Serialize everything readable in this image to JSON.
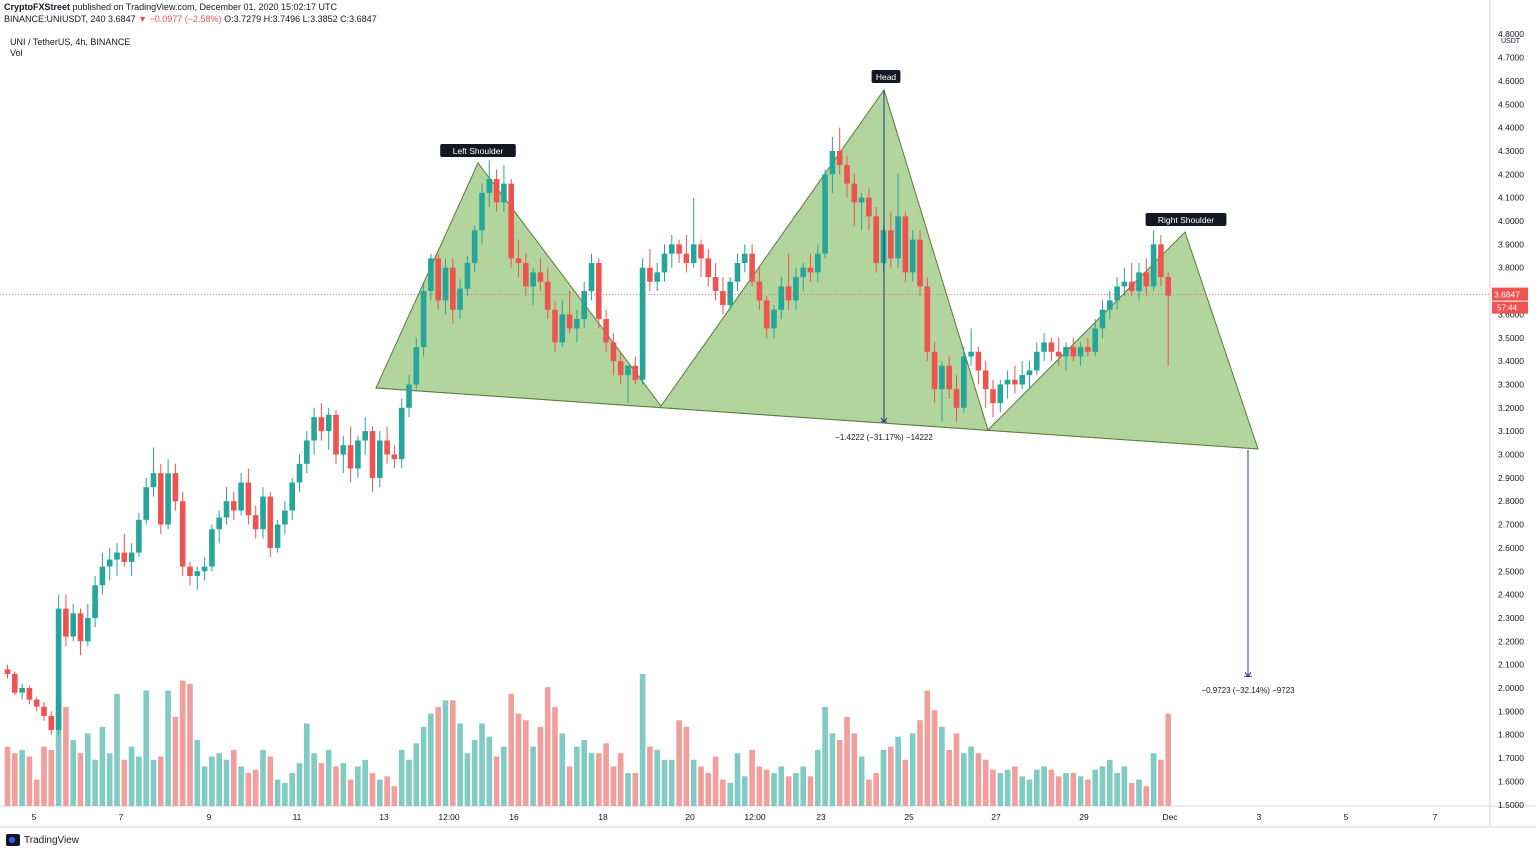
{
  "header": {
    "publisher": "CryptoFXStreet",
    "published_text": "published on TradingView.com, December 01, 2020 15:02:17 UTC",
    "symbol": "BINANCE:UNIUSDT, 240",
    "last": "3.6847",
    "change": "▼ −0.0977 (−2.58%)",
    "ohlc": "O:3.7279 H:3.7496 L:3.3852 C:3.6847"
  },
  "legend": {
    "title": "UNI / TetherUS, 4h, BINANCE",
    "volume_label": "Vol"
  },
  "brand": {
    "name": "TradingView"
  },
  "colors": {
    "up": "#26a69a",
    "down": "#ef5350",
    "vol_up": "#80cbc4",
    "vol_down": "#f19e9c",
    "pattern_fill": "#a5cd8c",
    "measure_line": "#1e3c8c",
    "price_line": "#ef5350"
  },
  "chart_data": {
    "type": "candlestick",
    "y_axis": {
      "currency": "USDT",
      "ylim": [
        1.5,
        4.8
      ],
      "ticks": [
        "1.5000",
        "1.6000",
        "1.7000",
        "1.8000",
        "1.9000",
        "2.0000",
        "2.1000",
        "2.2000",
        "2.3000",
        "2.4000",
        "2.5000",
        "2.6000",
        "2.7000",
        "2.8000",
        "2.9000",
        "3.0000",
        "3.1000",
        "3.2000",
        "3.3000",
        "3.4000",
        "3.5000",
        "3.6000",
        "3.7000",
        "3.8000",
        "3.9000",
        "4.0000",
        "4.1000",
        "4.2000",
        "4.3000",
        "4.4000",
        "4.5000",
        "4.6000",
        "4.7000",
        "4.8000"
      ]
    },
    "x_axis": {
      "ticks": [
        "5",
        "7",
        "9",
        "11",
        "13",
        "12:00",
        "16",
        "18",
        "20",
        "12:00",
        "23",
        "25",
        "27",
        "29",
        "Dec",
        "3",
        "5",
        "7"
      ]
    },
    "last_price": {
      "value": 3.6847,
      "label": "3.6847",
      "countdown": "57:44"
    },
    "pattern": {
      "name": "head-and-shoulders",
      "labels": [
        "Left Shoulder",
        "Head",
        "Right Shoulder"
      ],
      "points": [
        {
          "time": "Nov 13 08:00",
          "price": 3.28
        },
        {
          "time": "Nov 15 00:00",
          "price": 4.25
        },
        {
          "time": "Nov 19 04:00",
          "price": 3.21
        },
        {
          "time": "Nov 24 04:00",
          "price": 4.56
        },
        {
          "time": "Nov 27 00:00",
          "price": 3.11
        },
        {
          "time": "Nov 30 20:00",
          "price": 3.95
        },
        {
          "time": "Dec 02 12:00",
          "price": 3.02
        }
      ]
    },
    "measurements": [
      {
        "from": 4.56,
        "to": 3.14,
        "label": "−1.4222 (−31.17%) −14222"
      },
      {
        "from": 3.02,
        "to": 2.05,
        "label": "−0.9723 (−32.14%) −9723"
      }
    ],
    "candles": [
      [
        2.08,
        2.1,
        2.04,
        2.06,
        0.18
      ],
      [
        2.06,
        2.07,
        1.97,
        1.98,
        0.16
      ],
      [
        1.98,
        2.02,
        1.95,
        2.0,
        0.17
      ],
      [
        2.0,
        2.01,
        1.93,
        1.95,
        0.15
      ],
      [
        1.95,
        1.96,
        1.9,
        1.92,
        0.08
      ],
      [
        1.92,
        1.94,
        1.86,
        1.88,
        0.18
      ],
      [
        1.88,
        1.9,
        1.8,
        1.82,
        0.17
      ],
      [
        1.82,
        2.4,
        1.8,
        2.34,
        0.32
      ],
      [
        2.34,
        2.4,
        2.18,
        2.22,
        0.3
      ],
      [
        2.22,
        2.36,
        2.2,
        2.32,
        0.2
      ],
      [
        2.32,
        2.34,
        2.14,
        2.2,
        0.16
      ],
      [
        2.2,
        2.36,
        2.18,
        2.3,
        0.22
      ],
      [
        2.3,
        2.48,
        2.26,
        2.44,
        0.14
      ],
      [
        2.44,
        2.58,
        2.4,
        2.52,
        0.24
      ],
      [
        2.52,
        2.6,
        2.46,
        2.55,
        0.16
      ],
      [
        2.55,
        2.62,
        2.48,
        2.58,
        0.34
      ],
      [
        2.58,
        2.66,
        2.52,
        2.54,
        0.14
      ],
      [
        2.54,
        2.62,
        2.48,
        2.58,
        0.18
      ],
      [
        2.58,
        2.75,
        2.56,
        2.72,
        0.15
      ],
      [
        2.72,
        2.9,
        2.7,
        2.86,
        0.35
      ],
      [
        2.86,
        3.03,
        2.82,
        2.92,
        0.14
      ],
      [
        2.92,
        2.96,
        2.66,
        2.7,
        0.15
      ],
      [
        2.7,
        2.98,
        2.68,
        2.92,
        0.35
      ],
      [
        2.92,
        2.96,
        2.76,
        2.8,
        0.27
      ],
      [
        2.8,
        2.84,
        2.48,
        2.52,
        0.38
      ],
      [
        2.52,
        2.54,
        2.44,
        2.48,
        0.37
      ],
      [
        2.48,
        2.52,
        2.42,
        2.5,
        0.2
      ],
      [
        2.5,
        2.56,
        2.46,
        2.52,
        0.12
      ],
      [
        2.52,
        2.7,
        2.5,
        2.68,
        0.15
      ],
      [
        2.68,
        2.76,
        2.62,
        2.73,
        0.16
      ],
      [
        2.73,
        2.86,
        2.7,
        2.8,
        0.14
      ],
      [
        2.8,
        2.84,
        2.72,
        2.76,
        0.17
      ],
      [
        2.76,
        2.92,
        2.74,
        2.88,
        0.12
      ],
      [
        2.88,
        2.94,
        2.7,
        2.74,
        0.1
      ],
      [
        2.74,
        2.78,
        2.64,
        2.68,
        0.11
      ],
      [
        2.68,
        2.86,
        2.64,
        2.82,
        0.17
      ],
      [
        2.82,
        2.84,
        2.56,
        2.6,
        0.15
      ],
      [
        2.6,
        2.72,
        2.58,
        2.7,
        0.08
      ],
      [
        2.7,
        2.8,
        2.66,
        2.76,
        0.07
      ],
      [
        2.76,
        2.9,
        2.72,
        2.88,
        0.1
      ],
      [
        2.88,
        3.0,
        2.84,
        2.96,
        0.13
      ],
      [
        2.96,
        3.1,
        2.92,
        3.06,
        0.25
      ],
      [
        3.06,
        3.2,
        3.0,
        3.16,
        0.16
      ],
      [
        3.16,
        3.22,
        3.06,
        3.1,
        0.13
      ],
      [
        3.1,
        3.2,
        3.02,
        3.17,
        0.17
      ],
      [
        3.17,
        3.19,
        2.96,
        3.0,
        0.12
      ],
      [
        3.0,
        3.08,
        2.92,
        3.04,
        0.13
      ],
      [
        3.04,
        3.12,
        2.88,
        2.94,
        0.08
      ],
      [
        2.94,
        3.08,
        2.9,
        3.06,
        0.12
      ],
      [
        3.06,
        3.16,
        3.0,
        3.1,
        0.14
      ],
      [
        3.1,
        3.12,
        2.84,
        2.9,
        0.1
      ],
      [
        2.9,
        3.1,
        2.86,
        3.06,
        0.08
      ],
      [
        3.06,
        3.12,
        2.96,
        3.0,
        0.09
      ],
      [
        3.0,
        3.04,
        2.94,
        2.98,
        0.06
      ],
      [
        2.98,
        3.24,
        2.94,
        3.2,
        0.17
      ],
      [
        3.2,
        3.34,
        3.16,
        3.3,
        0.14
      ],
      [
        3.3,
        3.5,
        3.28,
        3.46,
        0.19
      ],
      [
        3.46,
        3.74,
        3.42,
        3.7,
        0.24
      ],
      [
        3.7,
        3.86,
        3.66,
        3.84,
        0.28
      ],
      [
        3.84,
        3.86,
        3.62,
        3.66,
        0.3
      ],
      [
        3.66,
        3.84,
        3.6,
        3.8,
        0.32
      ],
      [
        3.8,
        3.84,
        3.56,
        3.62,
        0.32
      ],
      [
        3.62,
        3.75,
        3.58,
        3.71,
        0.25
      ],
      [
        3.71,
        3.85,
        3.68,
        3.82,
        0.16
      ],
      [
        3.82,
        3.98,
        3.78,
        3.96,
        0.2
      ],
      [
        3.96,
        4.16,
        3.9,
        4.12,
        0.25
      ],
      [
        4.12,
        4.26,
        4.06,
        4.18,
        0.21
      ],
      [
        4.18,
        4.22,
        4.04,
        4.08,
        0.15
      ],
      [
        4.08,
        4.24,
        4.04,
        4.16,
        0.18
      ],
      [
        4.16,
        4.18,
        3.8,
        3.84,
        0.34
      ],
      [
        3.84,
        3.92,
        3.76,
        3.82,
        0.28
      ],
      [
        3.82,
        3.86,
        3.68,
        3.72,
        0.26
      ],
      [
        3.72,
        3.8,
        3.64,
        3.78,
        0.18
      ],
      [
        3.78,
        3.84,
        3.7,
        3.74,
        0.24
      ],
      [
        3.74,
        3.8,
        3.58,
        3.62,
        0.36
      ],
      [
        3.62,
        3.66,
        3.44,
        3.48,
        0.3
      ],
      [
        3.48,
        3.66,
        3.46,
        3.6,
        0.22
      ],
      [
        3.6,
        3.7,
        3.52,
        3.54,
        0.12
      ],
      [
        3.54,
        3.62,
        3.48,
        3.58,
        0.18
      ],
      [
        3.58,
        3.74,
        3.54,
        3.7,
        0.2
      ],
      [
        3.7,
        3.86,
        3.66,
        3.82,
        0.16
      ],
      [
        3.82,
        3.84,
        3.54,
        3.58,
        0.16
      ],
      [
        3.58,
        3.62,
        3.44,
        3.48,
        0.19
      ],
      [
        3.48,
        3.52,
        3.34,
        3.4,
        0.12
      ],
      [
        3.4,
        3.44,
        3.3,
        3.34,
        0.16
      ],
      [
        3.34,
        3.38,
        3.22,
        3.38,
        0.1
      ],
      [
        3.38,
        3.42,
        3.3,
        3.32,
        0.1
      ],
      [
        3.32,
        3.84,
        3.3,
        3.8,
        0.4
      ],
      [
        3.8,
        3.88,
        3.7,
        3.74,
        0.18
      ],
      [
        3.74,
        3.82,
        3.7,
        3.78,
        0.17
      ],
      [
        3.78,
        3.9,
        3.74,
        3.86,
        0.14
      ],
      [
        3.86,
        3.94,
        3.8,
        3.9,
        0.14
      ],
      [
        3.9,
        3.92,
        3.82,
        3.86,
        0.26
      ],
      [
        3.86,
        3.94,
        3.78,
        3.82,
        0.24
      ],
      [
        3.82,
        4.1,
        3.8,
        3.9,
        0.14
      ],
      [
        3.9,
        3.92,
        3.76,
        3.84,
        0.12
      ],
      [
        3.84,
        3.88,
        3.72,
        3.76,
        0.1
      ],
      [
        3.76,
        3.82,
        3.66,
        3.7,
        0.15
      ],
      [
        3.7,
        3.76,
        3.6,
        3.64,
        0.08
      ],
      [
        3.64,
        3.76,
        3.62,
        3.74,
        0.07
      ],
      [
        3.74,
        3.86,
        3.7,
        3.82,
        0.16
      ],
      [
        3.82,
        3.9,
        3.78,
        3.86,
        0.09
      ],
      [
        3.86,
        3.9,
        3.72,
        3.74,
        0.17
      ],
      [
        3.74,
        3.8,
        3.62,
        3.66,
        0.12
      ],
      [
        3.66,
        3.68,
        3.5,
        3.54,
        0.11
      ],
      [
        3.54,
        3.64,
        3.5,
        3.62,
        0.1
      ],
      [
        3.62,
        3.76,
        3.58,
        3.72,
        0.12
      ],
      [
        3.72,
        3.86,
        3.62,
        3.66,
        0.09
      ],
      [
        3.66,
        3.8,
        3.62,
        3.76,
        0.1
      ],
      [
        3.76,
        3.82,
        3.7,
        3.8,
        0.12
      ],
      [
        3.8,
        3.86,
        3.74,
        3.78,
        0.09
      ],
      [
        3.78,
        3.9,
        3.74,
        3.86,
        0.17
      ],
      [
        3.86,
        4.22,
        3.84,
        4.2,
        0.3
      ],
      [
        4.2,
        4.36,
        4.12,
        4.3,
        0.22
      ],
      [
        4.3,
        4.4,
        4.2,
        4.24,
        0.2
      ],
      [
        4.24,
        4.28,
        4.1,
        4.16,
        0.27
      ],
      [
        4.16,
        4.2,
        3.98,
        4.08,
        0.22
      ],
      [
        4.08,
        4.12,
        3.96,
        4.1,
        0.15
      ],
      [
        4.1,
        4.14,
        3.96,
        4.02,
        0.08
      ],
      [
        4.02,
        4.06,
        3.78,
        3.82,
        0.1
      ],
      [
        3.82,
        3.98,
        3.78,
        3.96,
        0.17
      ],
      [
        3.96,
        4.04,
        3.8,
        3.84,
        0.18
      ],
      [
        3.84,
        4.2,
        3.8,
        4.02,
        0.21
      ],
      [
        4.02,
        4.04,
        3.74,
        3.78,
        0.14
      ],
      [
        3.78,
        3.96,
        3.74,
        3.92,
        0.22
      ],
      [
        3.92,
        3.96,
        3.68,
        3.72,
        0.26
      ],
      [
        3.72,
        3.76,
        3.4,
        3.44,
        0.35
      ],
      [
        3.44,
        3.48,
        3.22,
        3.28,
        0.29
      ],
      [
        3.28,
        3.4,
        3.14,
        3.38,
        0.24
      ],
      [
        3.38,
        3.42,
        3.24,
        3.28,
        0.17
      ],
      [
        3.28,
        3.34,
        3.14,
        3.2,
        0.22
      ],
      [
        3.2,
        3.46,
        3.18,
        3.42,
        0.16
      ],
      [
        3.42,
        3.54,
        3.38,
        3.44,
        0.18
      ],
      [
        3.44,
        3.46,
        3.3,
        3.36,
        0.16
      ],
      [
        3.36,
        3.4,
        3.2,
        3.28,
        0.14
      ],
      [
        3.28,
        3.32,
        3.16,
        3.22,
        0.11
      ],
      [
        3.22,
        3.32,
        3.18,
        3.3,
        0.1
      ],
      [
        3.3,
        3.36,
        3.24,
        3.32,
        0.11
      ],
      [
        3.32,
        3.38,
        3.26,
        3.3,
        0.12
      ],
      [
        3.3,
        3.4,
        3.28,
        3.34,
        0.09
      ],
      [
        3.34,
        3.4,
        3.28,
        3.36,
        0.08
      ],
      [
        3.36,
        3.48,
        3.34,
        3.44,
        0.11
      ],
      [
        3.44,
        3.52,
        3.4,
        3.48,
        0.12
      ],
      [
        3.48,
        3.5,
        3.4,
        3.44,
        0.11
      ],
      [
        3.44,
        3.5,
        3.38,
        3.42,
        0.09
      ],
      [
        3.42,
        3.48,
        3.36,
        3.46,
        0.1
      ],
      [
        3.46,
        3.5,
        3.4,
        3.42,
        0.1
      ],
      [
        3.42,
        3.48,
        3.38,
        3.46,
        0.09
      ],
      [
        3.46,
        3.5,
        3.42,
        3.44,
        0.08
      ],
      [
        3.44,
        3.58,
        3.42,
        3.54,
        0.11
      ],
      [
        3.54,
        3.66,
        3.5,
        3.62,
        0.12
      ],
      [
        3.62,
        3.7,
        3.58,
        3.66,
        0.14
      ],
      [
        3.66,
        3.76,
        3.62,
        3.72,
        0.1
      ],
      [
        3.72,
        3.8,
        3.68,
        3.74,
        0.12
      ],
      [
        3.74,
        3.82,
        3.68,
        3.7,
        0.07
      ],
      [
        3.7,
        3.82,
        3.66,
        3.78,
        0.08
      ],
      [
        3.78,
        3.84,
        3.68,
        3.72,
        0.06
      ],
      [
        3.72,
        3.96,
        3.7,
        3.9,
        0.16
      ],
      [
        3.9,
        3.94,
        3.72,
        3.76,
        0.14
      ],
      [
        3.76,
        3.78,
        3.38,
        3.68,
        0.28
      ]
    ]
  }
}
